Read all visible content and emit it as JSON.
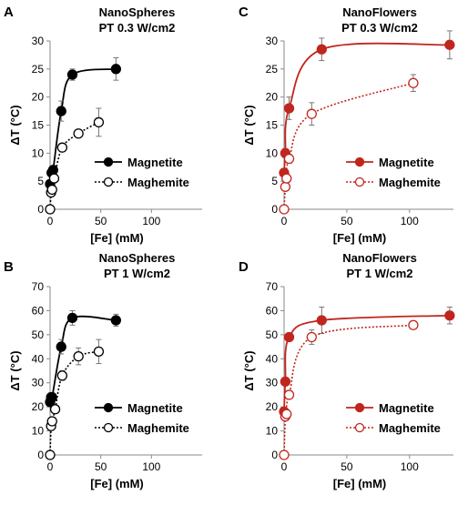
{
  "chart_data": [
    {
      "type": "scatter",
      "panel": "A",
      "title": "NanoSpheres",
      "subtitle": "PT 0.3 W/cm2",
      "xlabel": "[Fe] (mM)",
      "ylabel": "ΔT (°C)",
      "xlim": [
        0,
        150
      ],
      "ylim": [
        0,
        30
      ],
      "xticks": [
        0,
        50,
        100
      ],
      "yticks": [
        0,
        5,
        10,
        15,
        20,
        25,
        30
      ],
      "color": "#000000",
      "legend": "lower-right",
      "series": [
        {
          "name": "Magnetite",
          "style": "solid",
          "marker": "filled",
          "x": [
            0,
            1.5,
            3,
            11,
            22,
            65
          ],
          "y": [
            4.5,
            6.5,
            7,
            17.5,
            24,
            25
          ],
          "err": [
            0.3,
            0.5,
            0.5,
            1.8,
            1.0,
            2.0
          ]
        },
        {
          "name": "Maghemite",
          "style": "dotted",
          "marker": "open",
          "x": [
            0,
            1,
            2,
            4,
            12,
            28,
            48
          ],
          "y": [
            0,
            3,
            3.5,
            5.5,
            11,
            13.5,
            15.5
          ],
          "err": [
            0,
            0.3,
            0.3,
            0.5,
            0.5,
            0.5,
            2.5
          ]
        }
      ]
    },
    {
      "type": "scatter",
      "panel": "C",
      "title": "NanoFlowers",
      "subtitle": "PT 0.3 W/cm2",
      "xlabel": "[Fe] (mM)",
      "ylabel": "ΔT (°C)",
      "xlim": [
        0,
        135
      ],
      "ylim": [
        0,
        30
      ],
      "xticks": [
        0,
        50,
        100
      ],
      "yticks": [
        0,
        5,
        10,
        15,
        20,
        25,
        30
      ],
      "color": "#c0261d",
      "legend": "lower-right",
      "series": [
        {
          "name": "Magnetite",
          "style": "solid",
          "marker": "filled",
          "x": [
            0,
            1,
            4,
            30,
            132
          ],
          "y": [
            6.5,
            10,
            18,
            28.5,
            29.3
          ],
          "err": [
            0.5,
            0.8,
            2.0,
            2.0,
            2.5
          ]
        },
        {
          "name": "Maghemite",
          "style": "dotted",
          "marker": "open",
          "x": [
            0,
            1,
            2,
            4,
            22,
            103
          ],
          "y": [
            0,
            4,
            5.5,
            9,
            17,
            22.5
          ],
          "err": [
            0,
            0.3,
            0.5,
            0.8,
            2.0,
            1.5
          ]
        }
      ]
    },
    {
      "type": "scatter",
      "panel": "B",
      "title": "NanoSpheres",
      "subtitle": "PT 1 W/cm2",
      "xlabel": "[Fe] (mM)",
      "ylabel": "ΔT (°C)",
      "xlim": [
        0,
        150
      ],
      "ylim": [
        0,
        70
      ],
      "xticks": [
        0,
        50,
        100
      ],
      "yticks": [
        0,
        10,
        20,
        30,
        40,
        50,
        60,
        70
      ],
      "color": "#000000",
      "legend": "lower-right",
      "series": [
        {
          "name": "Magnetite",
          "style": "solid",
          "marker": "filled",
          "x": [
            0,
            1,
            2,
            11,
            22,
            65
          ],
          "y": [
            22,
            24,
            24,
            45,
            57,
            56
          ],
          "err": [
            0.5,
            1.0,
            1.0,
            3.0,
            3.0,
            2.5
          ]
        },
        {
          "name": "Maghemite",
          "style": "dotted",
          "marker": "open",
          "x": [
            0,
            1,
            2,
            5,
            12,
            28,
            48
          ],
          "y": [
            0,
            12,
            14,
            19,
            33,
            41,
            43
          ],
          "err": [
            0,
            0.5,
            0.8,
            1.0,
            2.0,
            3.5,
            5.0
          ]
        }
      ]
    },
    {
      "type": "scatter",
      "panel": "D",
      "title": "NanoFlowers",
      "subtitle": "PT 1 W/cm2",
      "xlabel": "[Fe] (mM)",
      "ylabel": "ΔT (°C)",
      "xlim": [
        0,
        135
      ],
      "ylim": [
        0,
        70
      ],
      "xticks": [
        0,
        50,
        100
      ],
      "yticks": [
        0,
        10,
        20,
        30,
        40,
        50,
        60,
        70
      ],
      "color": "#c0261d",
      "legend": "lower-right",
      "series": [
        {
          "name": "Magnetite",
          "style": "solid",
          "marker": "filled",
          "x": [
            0,
            1,
            4,
            30,
            132
          ],
          "y": [
            18,
            30.5,
            49,
            56,
            58
          ],
          "err": [
            0.5,
            1.0,
            1.5,
            5.5,
            3.5
          ]
        },
        {
          "name": "Maghemite",
          "style": "dotted",
          "marker": "open",
          "x": [
            0,
            1,
            2,
            4,
            22,
            103
          ],
          "y": [
            0,
            16,
            17,
            25,
            49,
            54
          ],
          "err": [
            0,
            0.5,
            0.8,
            1.5,
            3.0,
            1.0
          ]
        }
      ]
    }
  ]
}
